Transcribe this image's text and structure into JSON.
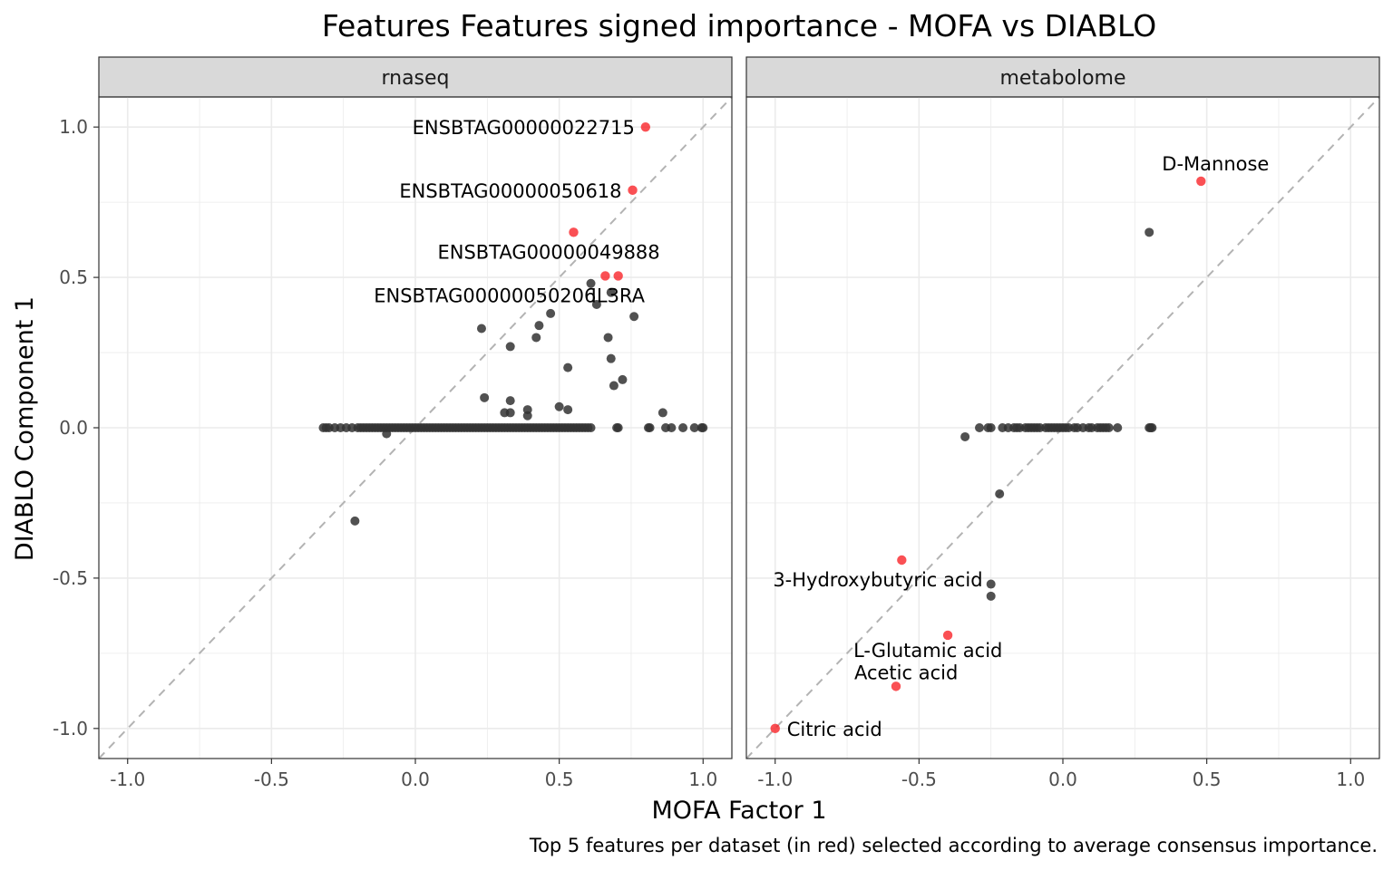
{
  "chart_data": {
    "type": "scatter",
    "title": "Features Features signed importance - MOFA vs DIABLO",
    "xlabel": "MOFA Factor 1",
    "ylabel": "DIABLO Component 1",
    "caption": "Top 5 features per dataset (in red) selected according to average consensus importance.",
    "xlim": [
      -1.1,
      1.1
    ],
    "ylim": [
      -1.1,
      1.1
    ],
    "x_ticks": [
      -1.0,
      -0.5,
      0.0,
      0.5,
      1.0
    ],
    "y_ticks": [
      -1.0,
      -0.5,
      0.0,
      0.5,
      1.0
    ],
    "x_tick_labels": [
      "-1.0",
      "-0.5",
      "0.0",
      "0.5",
      "1.0"
    ],
    "y_tick_labels": [
      "-1.0",
      "-0.5",
      "0.0",
      "0.5",
      "1.0"
    ],
    "grid": true,
    "reference_line": "y = x (dashed)",
    "colors": {
      "selected": "#f8161b",
      "other": "#333333",
      "diagonal": "#b3b3b3",
      "strip": "#d9d9d9"
    },
    "panels": [
      {
        "name": "rnaseq",
        "points": [
          [
            -0.32,
            0
          ],
          [
            -0.31,
            0
          ],
          [
            -0.3,
            0
          ],
          [
            -0.28,
            0
          ],
          [
            -0.26,
            0
          ],
          [
            -0.24,
            0
          ],
          [
            -0.22,
            0
          ],
          [
            -0.2,
            0
          ],
          [
            -0.19,
            0
          ],
          [
            -0.18,
            0
          ],
          [
            -0.17,
            0
          ],
          [
            -0.16,
            0
          ],
          [
            -0.15,
            0
          ],
          [
            -0.14,
            0
          ],
          [
            -0.13,
            0
          ],
          [
            -0.12,
            0
          ],
          [
            -0.11,
            0
          ],
          [
            -0.1,
            0
          ],
          [
            -0.09,
            0
          ],
          [
            -0.08,
            0
          ],
          [
            -0.07,
            0
          ],
          [
            -0.06,
            0
          ],
          [
            -0.05,
            0
          ],
          [
            -0.04,
            0
          ],
          [
            -0.03,
            0
          ],
          [
            -0.02,
            0
          ],
          [
            -0.01,
            0
          ],
          [
            0.0,
            0
          ],
          [
            0.01,
            0
          ],
          [
            0.02,
            0
          ],
          [
            0.03,
            0
          ],
          [
            0.04,
            0
          ],
          [
            0.05,
            0
          ],
          [
            0.06,
            0
          ],
          [
            0.07,
            0
          ],
          [
            0.08,
            0
          ],
          [
            0.09,
            0
          ],
          [
            0.1,
            0
          ],
          [
            0.11,
            0
          ],
          [
            0.12,
            0
          ],
          [
            0.13,
            0
          ],
          [
            0.14,
            0
          ],
          [
            0.15,
            0
          ],
          [
            0.16,
            0
          ],
          [
            0.17,
            0
          ],
          [
            0.18,
            0
          ],
          [
            0.19,
            0
          ],
          [
            0.2,
            0
          ],
          [
            0.21,
            0
          ],
          [
            0.22,
            0
          ],
          [
            0.23,
            0
          ],
          [
            0.24,
            0
          ],
          [
            0.25,
            0
          ],
          [
            0.26,
            0
          ],
          [
            0.27,
            0
          ],
          [
            0.28,
            0
          ],
          [
            0.29,
            0
          ],
          [
            0.3,
            0
          ],
          [
            0.31,
            0
          ],
          [
            0.32,
            0
          ],
          [
            0.33,
            0
          ],
          [
            0.34,
            0
          ],
          [
            0.35,
            0
          ],
          [
            0.36,
            0
          ],
          [
            0.37,
            0
          ],
          [
            0.38,
            0
          ],
          [
            0.39,
            0
          ],
          [
            0.4,
            0
          ],
          [
            0.41,
            0
          ],
          [
            0.42,
            0
          ],
          [
            0.43,
            0
          ],
          [
            0.44,
            0
          ],
          [
            0.45,
            0
          ],
          [
            0.46,
            0
          ],
          [
            0.47,
            0
          ],
          [
            0.48,
            0
          ],
          [
            0.49,
            0
          ],
          [
            0.5,
            0
          ],
          [
            0.51,
            0
          ],
          [
            0.52,
            0
          ],
          [
            0.53,
            0
          ],
          [
            0.54,
            0
          ],
          [
            0.55,
            0
          ],
          [
            0.56,
            0
          ],
          [
            0.57,
            0
          ],
          [
            0.58,
            0
          ],
          [
            0.59,
            0
          ],
          [
            0.6,
            0
          ],
          [
            0.61,
            0
          ],
          [
            0.7,
            0
          ],
          [
            0.705,
            0
          ],
          [
            0.81,
            0
          ],
          [
            0.815,
            0
          ],
          [
            0.87,
            0
          ],
          [
            0.89,
            0
          ],
          [
            0.93,
            0
          ],
          [
            0.97,
            0
          ],
          [
            0.995,
            0
          ],
          [
            1.0,
            0
          ],
          [
            -0.1,
            -0.02
          ],
          [
            -0.21,
            -0.31
          ],
          [
            0.23,
            0.33
          ],
          [
            0.33,
            0.27
          ],
          [
            0.43,
            0.34
          ],
          [
            0.42,
            0.3
          ],
          [
            0.47,
            0.38
          ],
          [
            0.53,
            0.2
          ],
          [
            0.61,
            0.48
          ],
          [
            0.63,
            0.41
          ],
          [
            0.68,
            0.45
          ],
          [
            0.67,
            0.3
          ],
          [
            0.68,
            0.23
          ],
          [
            0.69,
            0.14
          ],
          [
            0.72,
            0.16
          ],
          [
            0.76,
            0.37
          ],
          [
            0.24,
            0.1
          ],
          [
            0.33,
            0.09
          ],
          [
            0.31,
            0.05
          ],
          [
            0.33,
            0.05
          ],
          [
            0.39,
            0.06
          ],
          [
            0.39,
            0.04
          ],
          [
            0.5,
            0.07
          ],
          [
            0.53,
            0.06
          ],
          [
            0.86,
            0.05
          ]
        ],
        "highlights": [
          {
            "x": 0.8,
            "y": 1.0,
            "label": "ENSBTAG00000022715"
          },
          {
            "x": 0.755,
            "y": 0.79,
            "label": "ENSBTAG00000050618"
          },
          {
            "x": 0.55,
            "y": 0.65,
            "label": "ENSBTAG00000049888"
          },
          {
            "x": 0.66,
            "y": 0.505,
            "label": "ENSBTAG00000050206"
          },
          {
            "x": 0.705,
            "y": 0.505,
            "label": "IL3RA"
          }
        ]
      },
      {
        "name": "metabolome",
        "points": [
          [
            -0.34,
            -0.03
          ],
          [
            -0.29,
            0
          ],
          [
            -0.26,
            0
          ],
          [
            -0.25,
            0
          ],
          [
            -0.21,
            0
          ],
          [
            -0.19,
            0
          ],
          [
            -0.17,
            0
          ],
          [
            -0.16,
            0
          ],
          [
            -0.15,
            0
          ],
          [
            -0.13,
            0
          ],
          [
            -0.12,
            0
          ],
          [
            -0.11,
            0
          ],
          [
            -0.1,
            0
          ],
          [
            -0.09,
            0
          ],
          [
            -0.08,
            0
          ],
          [
            -0.06,
            0
          ],
          [
            -0.05,
            0
          ],
          [
            -0.04,
            0
          ],
          [
            -0.03,
            0
          ],
          [
            -0.02,
            0
          ],
          [
            -0.01,
            0
          ],
          [
            0.0,
            0
          ],
          [
            0.01,
            0
          ],
          [
            0.02,
            0
          ],
          [
            0.04,
            0
          ],
          [
            0.05,
            0
          ],
          [
            0.07,
            0
          ],
          [
            0.09,
            0
          ],
          [
            0.1,
            0
          ],
          [
            0.12,
            0
          ],
          [
            0.13,
            0
          ],
          [
            0.14,
            0
          ],
          [
            0.15,
            0
          ],
          [
            0.16,
            0
          ],
          [
            0.19,
            0
          ],
          [
            0.3,
            0
          ],
          [
            0.305,
            0
          ],
          [
            0.31,
            0
          ],
          [
            0.3,
            0.65
          ],
          [
            -0.22,
            -0.22
          ],
          [
            -0.25,
            -0.52
          ],
          [
            -0.25,
            -0.56
          ]
        ],
        "highlights": [
          {
            "x": 0.48,
            "y": 0.82,
            "label": "D-Mannose"
          },
          {
            "x": -0.56,
            "y": -0.44,
            "label": "3-Hydroxybutyric acid"
          },
          {
            "x": -0.4,
            "y": -0.69,
            "label": "L-Glutamic acid"
          },
          {
            "x": -0.58,
            "y": -0.86,
            "label": "Acetic acid"
          },
          {
            "x": -1.0,
            "y": -1.0,
            "label": "Citric acid"
          }
        ]
      }
    ]
  }
}
